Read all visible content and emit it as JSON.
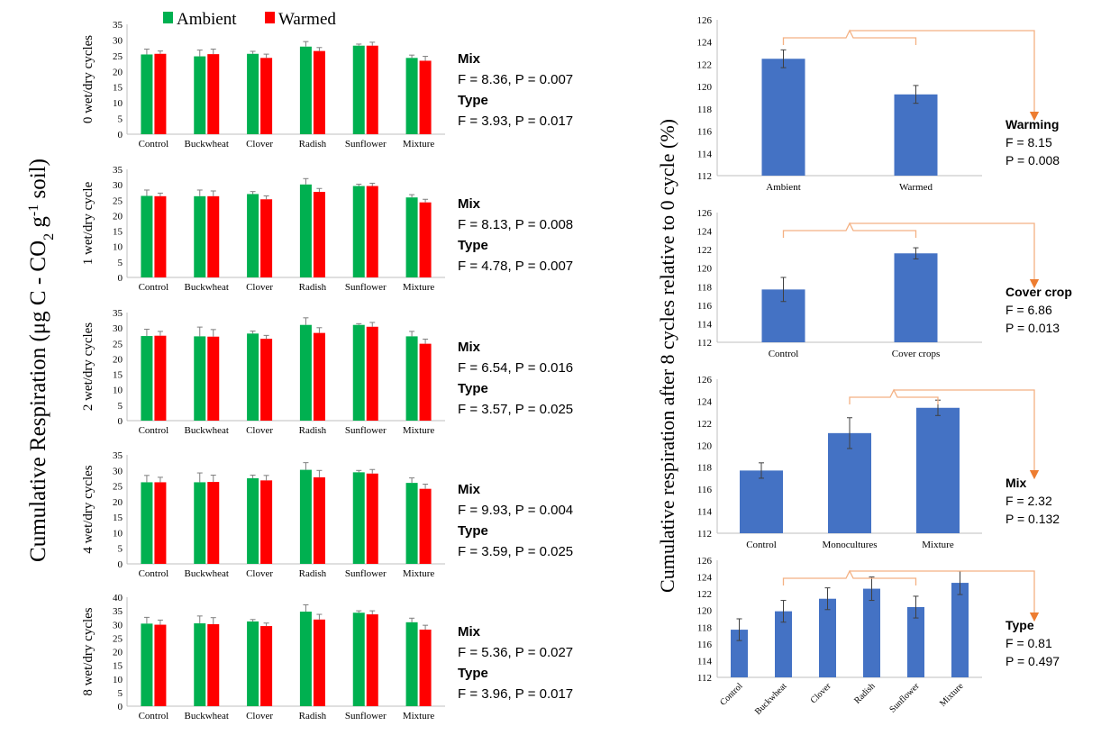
{
  "colors": {
    "ambient": "#00b050",
    "warmed": "#ff0000",
    "bar_right": "#4472c4",
    "bracket": "#f4b183",
    "arrow": "#ed7d31",
    "axis": "#bfbfbf"
  },
  "left_panel": {
    "ylabel_main": "Cumulative Respiration (μg C - CO",
    "ylabel_sub": "2",
    "ylabel_g": " g",
    "ylabel_sup": "-1",
    "ylabel_end": " soil)",
    "legend": {
      "ambient": "Ambient",
      "warmed": "Warmed"
    }
  },
  "right_panel": {
    "ylabel": "Cumulative respiration after 8 cycles relative to 0 cycle (%)"
  },
  "chart_data": [
    {
      "type": "bar",
      "ylabel": "0 wet/dry cycles",
      "ylim": [
        0,
        35
      ],
      "yticks": [
        0,
        5,
        10,
        15,
        20,
        25,
        30,
        35
      ],
      "categories": [
        "Control",
        "Buckwheat",
        "Clover",
        "Radish",
        "Sunflower",
        "Mixture"
      ],
      "series": [
        {
          "name": "Ambient",
          "values": [
            25.4,
            24.8,
            25.6,
            27.9,
            28.2,
            24.3
          ],
          "errors": [
            1.7,
            2.0,
            0.8,
            1.6,
            0.5,
            0.9
          ]
        },
        {
          "name": "Warmed",
          "values": [
            25.6,
            25.5,
            24.3,
            26.5,
            28.2,
            23.4
          ],
          "errors": [
            0.9,
            1.6,
            1.2,
            1.1,
            1.1,
            1.4
          ]
        }
      ],
      "stats": [
        {
          "label": "Mix",
          "value": "F = 8.36,  P = 0.007"
        },
        {
          "label": "Type",
          "value": "F = 3.93,  P = 0.017"
        }
      ]
    },
    {
      "type": "bar",
      "ylabel": "1 wet/dry cycle",
      "ylim": [
        0,
        35
      ],
      "yticks": [
        0,
        5,
        10,
        15,
        20,
        25,
        30,
        35
      ],
      "categories": [
        "Control",
        "Buckwheat",
        "Clover",
        "Radish",
        "Sunflower",
        "Mixture"
      ],
      "series": [
        {
          "name": "Ambient",
          "values": [
            26.4,
            26.3,
            27.0,
            30.1,
            29.6,
            25.9
          ],
          "errors": [
            1.9,
            2.0,
            0.8,
            1.9,
            0.6,
            0.9
          ]
        },
        {
          "name": "Warmed",
          "values": [
            26.3,
            26.3,
            25.3,
            27.7,
            29.6,
            24.3
          ],
          "errors": [
            1.0,
            1.7,
            1.1,
            1.1,
            0.9,
            1.0
          ]
        }
      ],
      "stats": [
        {
          "label": "Mix",
          "value": "F = 8.13,  P = 0.008"
        },
        {
          "label": "Type",
          "value": "F = 4.78,  P = 0.007"
        }
      ]
    },
    {
      "type": "bar",
      "ylabel": "2 wet/dry cycles",
      "ylim": [
        0,
        35
      ],
      "yticks": [
        0,
        5,
        10,
        15,
        20,
        25,
        30,
        35
      ],
      "categories": [
        "Control",
        "Buckwheat",
        "Clover",
        "Radish",
        "Sunflower",
        "Mixture"
      ],
      "series": [
        {
          "name": "Ambient",
          "values": [
            27.4,
            27.3,
            28.2,
            31.0,
            31.0,
            27.3
          ],
          "errors": [
            2.2,
            3.0,
            0.8,
            2.3,
            0.4,
            1.6
          ]
        },
        {
          "name": "Warmed",
          "values": [
            27.5,
            27.2,
            26.5,
            28.4,
            30.4,
            24.9
          ],
          "errors": [
            1.4,
            2.3,
            1.1,
            1.7,
            1.4,
            1.5
          ]
        }
      ],
      "stats": [
        {
          "label": "Mix",
          "value": "F = 6.54,  P = 0.016"
        },
        {
          "label": "Type",
          "value": "F = 3.57,  P = 0.025"
        }
      ]
    },
    {
      "type": "bar",
      "ylabel": "4 wet/dry cycles",
      "ylim": [
        0,
        35
      ],
      "yticks": [
        0,
        5,
        10,
        15,
        20,
        25,
        30,
        35
      ],
      "categories": [
        "Control",
        "Buckwheat",
        "Clover",
        "Radish",
        "Sunflower",
        "Mixture"
      ],
      "series": [
        {
          "name": "Ambient",
          "values": [
            26.2,
            26.2,
            27.5,
            30.2,
            29.4,
            26.0
          ],
          "errors": [
            2.2,
            3.0,
            1.0,
            2.3,
            0.6,
            1.6
          ]
        },
        {
          "name": "Warmed",
          "values": [
            26.2,
            26.3,
            26.8,
            27.8,
            29.0,
            24.1
          ],
          "errors": [
            1.6,
            2.2,
            1.6,
            2.2,
            1.3,
            1.5
          ]
        }
      ],
      "stats": [
        {
          "label": "Mix",
          "value": "F = 9.93,  P = 0.004"
        },
        {
          "label": "Type",
          "value": "F = 3.59,  P = 0.025"
        }
      ]
    },
    {
      "type": "bar",
      "ylabel": "8 wet/dry cycles",
      "ylim": [
        0,
        40
      ],
      "yticks": [
        0,
        5,
        10,
        15,
        20,
        25,
        30,
        35,
        40
      ],
      "categories": [
        "Control",
        "Buckwheat",
        "Clover",
        "Radish",
        "Sunflower",
        "Mixture"
      ],
      "series": [
        {
          "name": "Ambient",
          "values": [
            30.3,
            30.4,
            31.1,
            34.7,
            34.3,
            30.8
          ],
          "errors": [
            2.3,
            2.7,
            0.7,
            2.5,
            0.7,
            1.5
          ]
        },
        {
          "name": "Warmed",
          "values": [
            29.9,
            30.1,
            29.4,
            31.8,
            33.7,
            28.1
          ],
          "errors": [
            1.7,
            2.4,
            1.1,
            1.9,
            1.3,
            1.6
          ]
        }
      ],
      "stats": [
        {
          "label": "Mix",
          "value": "F = 5.36,  P = 0.027"
        },
        {
          "label": "Type",
          "value": "F = 3.96,  P = 0.017"
        }
      ]
    },
    {
      "type": "bar",
      "ylim": [
        112,
        126
      ],
      "yticks": [
        112,
        114,
        116,
        118,
        120,
        122,
        124,
        126
      ],
      "categories": [
        "Ambient",
        "Warmed"
      ],
      "values": [
        122.5,
        119.3
      ],
      "errors": [
        0.8,
        0.8
      ],
      "bracket_groups": [
        [
          0,
          1
        ]
      ],
      "stats": [
        {
          "label": "Warming"
        },
        {
          "value": "F = 8.15"
        },
        {
          "value": "P = 0.008"
        }
      ]
    },
    {
      "type": "bar",
      "ylim": [
        112,
        126
      ],
      "yticks": [
        112,
        114,
        116,
        118,
        120,
        122,
        124,
        126
      ],
      "categories": [
        "Control",
        "Cover crops"
      ],
      "values": [
        117.7,
        121.6
      ],
      "errors": [
        1.3,
        0.6
      ],
      "bracket_groups": [
        [
          0,
          1
        ]
      ],
      "stats": [
        {
          "label": "Cover crop"
        },
        {
          "value": "F = 6.86"
        },
        {
          "value": "P = 0.013"
        }
      ]
    },
    {
      "type": "bar",
      "ylim": [
        112,
        126
      ],
      "yticks": [
        112,
        114,
        116,
        118,
        120,
        122,
        124,
        126
      ],
      "categories": [
        "Control",
        "Monocultures",
        "Mixture"
      ],
      "values": [
        117.7,
        121.1,
        123.4
      ],
      "errors": [
        0.7,
        1.4,
        0.7
      ],
      "bracket_groups": [
        [
          1,
          2
        ]
      ],
      "stats": [
        {
          "label": "Mix"
        },
        {
          "value": "F = 2.32"
        },
        {
          "value": "P = 0.132"
        }
      ]
    },
    {
      "type": "bar",
      "ylim": [
        112,
        126
      ],
      "yticks": [
        112,
        114,
        116,
        118,
        120,
        122,
        124,
        126
      ],
      "categories": [
        "Control",
        "Buckwheat",
        "Clover",
        "Radish",
        "Sunflower",
        "Mixture"
      ],
      "values": [
        117.7,
        119.9,
        121.4,
        122.6,
        120.4,
        123.3
      ],
      "errors": [
        1.3,
        1.3,
        1.3,
        1.4,
        1.3,
        1.4
      ],
      "bracket_groups": [
        [
          1,
          4
        ]
      ],
      "stats": [
        {
          "label": "Type"
        },
        {
          "value": "F = 0.81"
        },
        {
          "value": "P = 0.497"
        }
      ]
    }
  ]
}
